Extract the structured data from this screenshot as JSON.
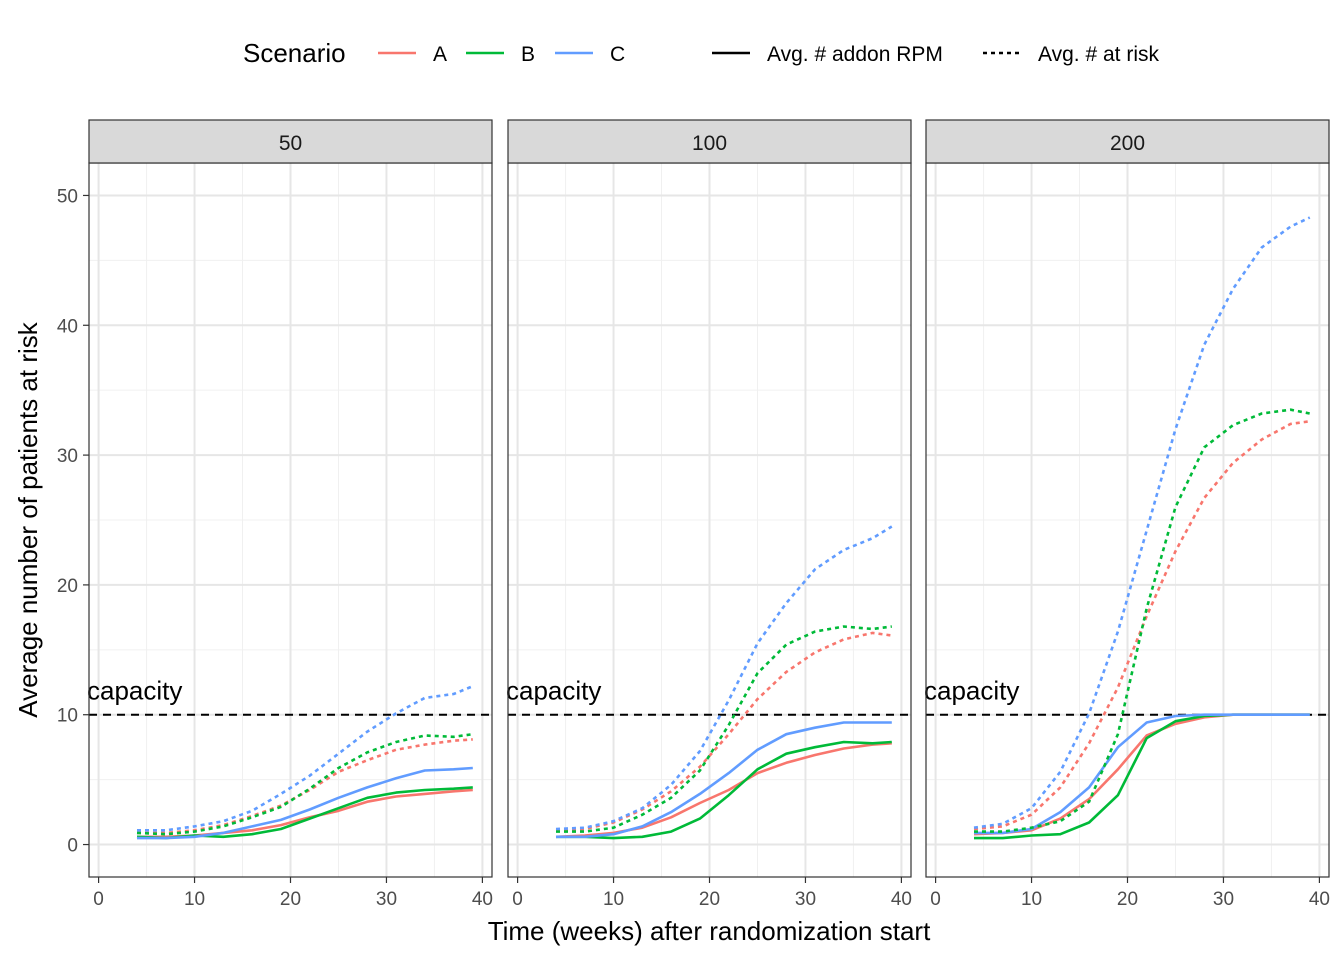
{
  "legend": {
    "title": "Scenario",
    "items": [
      {
        "label": "A",
        "color": "#F8766D"
      },
      {
        "label": "B",
        "color": "#00BA38"
      },
      {
        "label": "C",
        "color": "#619CFF"
      }
    ],
    "linetypes": [
      {
        "label": "Avg. # addon RPM",
        "dash": "solid"
      },
      {
        "label": "Avg. # at risk",
        "dash": "dotted"
      }
    ],
    "position": "top"
  },
  "chart_data": {
    "type": "line",
    "xlabel": "Time (weeks) after randomization start",
    "ylabel": "Average number of patients at risk",
    "xlim": [
      -1,
      41
    ],
    "ylim": [
      -2.5,
      52.5
    ],
    "xticks": [
      0,
      10,
      20,
      30,
      40
    ],
    "yticks": [
      0,
      10,
      20,
      30,
      40,
      50
    ],
    "grid": true,
    "hline": {
      "y": 10,
      "label": "capacity",
      "style": "dashed"
    },
    "x": [
      4,
      7,
      10,
      13,
      16,
      19,
      22,
      25,
      28,
      31,
      34,
      37,
      39
    ],
    "panels": [
      {
        "label": "50",
        "series": [
          {
            "scenario": "A",
            "measure": "Avg. # addon RPM",
            "values": [
              0.6,
              0.6,
              0.7,
              0.9,
              1.1,
              1.5,
              2.1,
              2.6,
              3.3,
              3.7,
              3.9,
              4.1,
              4.2
            ]
          },
          {
            "scenario": "B",
            "measure": "Avg. # addon RPM",
            "values": [
              0.6,
              0.5,
              0.7,
              0.6,
              0.8,
              1.2,
              2.0,
              2.8,
              3.6,
              4.0,
              4.2,
              4.3,
              4.4
            ]
          },
          {
            "scenario": "C",
            "measure": "Avg. # addon RPM",
            "values": [
              0.5,
              0.5,
              0.6,
              0.9,
              1.4,
              1.9,
              2.7,
              3.6,
              4.4,
              5.1,
              5.7,
              5.8,
              5.9
            ]
          },
          {
            "scenario": "A",
            "measure": "Avg. # at risk",
            "values": [
              0.9,
              0.9,
              1.1,
              1.5,
              2.2,
              3.0,
              4.2,
              5.6,
              6.5,
              7.3,
              7.7,
              8.0,
              8.1
            ]
          },
          {
            "scenario": "B",
            "measure": "Avg. # at risk",
            "values": [
              0.9,
              0.8,
              1.0,
              1.4,
              2.1,
              2.9,
              4.3,
              5.9,
              7.1,
              7.9,
              8.4,
              8.3,
              8.5
            ]
          },
          {
            "scenario": "C",
            "measure": "Avg. # at risk",
            "values": [
              1.1,
              1.1,
              1.4,
              1.8,
              2.6,
              3.9,
              5.3,
              7.0,
              8.7,
              10.1,
              11.3,
              11.6,
              12.2
            ]
          }
        ]
      },
      {
        "label": "100",
        "series": [
          {
            "scenario": "A",
            "measure": "Avg. # addon RPM",
            "values": [
              0.6,
              0.7,
              0.9,
              1.3,
              2.1,
              3.2,
              4.2,
              5.5,
              6.3,
              6.9,
              7.4,
              7.7,
              7.8
            ]
          },
          {
            "scenario": "B",
            "measure": "Avg. # addon RPM",
            "values": [
              0.6,
              0.6,
              0.5,
              0.6,
              1.0,
              2.0,
              3.8,
              5.8,
              7.0,
              7.5,
              7.9,
              7.8,
              7.9
            ]
          },
          {
            "scenario": "C",
            "measure": "Avg. # addon RPM",
            "values": [
              0.6,
              0.6,
              0.8,
              1.4,
              2.5,
              3.9,
              5.5,
              7.3,
              8.5,
              9.0,
              9.4,
              9.4,
              9.4
            ]
          },
          {
            "scenario": "A",
            "measure": "Avg. # at risk",
            "values": [
              1.1,
              1.2,
              1.7,
              2.7,
              4.1,
              6.0,
              8.5,
              11.2,
              13.3,
              14.8,
              15.8,
              16.3,
              16.1
            ]
          },
          {
            "scenario": "B",
            "measure": "Avg. # at risk",
            "values": [
              1.0,
              1.0,
              1.3,
              2.3,
              3.6,
              5.7,
              9.2,
              13.2,
              15.4,
              16.4,
              16.8,
              16.6,
              16.8
            ]
          },
          {
            "scenario": "C",
            "measure": "Avg. # at risk",
            "values": [
              1.2,
              1.3,
              1.8,
              2.8,
              4.6,
              7.2,
              11.1,
              15.5,
              18.6,
              21.2,
              22.7,
              23.6,
              24.5
            ]
          }
        ]
      },
      {
        "label": "200",
        "series": [
          {
            "scenario": "A",
            "measure": "Avg. # addon RPM",
            "values": [
              0.8,
              0.9,
              1.1,
              2.0,
              3.5,
              5.8,
              8.4,
              9.3,
              9.8,
              10.0,
              10.0,
              10.0,
              10.0
            ]
          },
          {
            "scenario": "B",
            "measure": "Avg. # addon RPM",
            "values": [
              0.5,
              0.5,
              0.7,
              0.8,
              1.7,
              3.8,
              8.2,
              9.5,
              9.9,
              10.0,
              10.0,
              10.0,
              10.0
            ]
          },
          {
            "scenario": "C",
            "measure": "Avg. # addon RPM",
            "values": [
              0.9,
              0.9,
              1.2,
              2.5,
              4.4,
              7.5,
              9.4,
              9.9,
              10.0,
              10.0,
              10.0,
              10.0,
              10.0
            ]
          },
          {
            "scenario": "A",
            "measure": "Avg. # at risk",
            "values": [
              1.2,
              1.4,
              2.3,
              4.4,
              7.8,
              12.1,
              17.6,
              22.6,
              26.7,
              29.4,
              31.2,
              32.4,
              32.6
            ]
          },
          {
            "scenario": "B",
            "measure": "Avg. # at risk",
            "values": [
              1.0,
              1.0,
              1.3,
              1.8,
              3.3,
              8.5,
              18.2,
              26.0,
              30.6,
              32.3,
              33.2,
              33.5,
              33.2
            ]
          },
          {
            "scenario": "C",
            "measure": "Avg. # at risk",
            "values": [
              1.3,
              1.6,
              2.8,
              5.6,
              10.1,
              16.4,
              24.2,
              32.0,
              38.5,
              42.8,
              46.0,
              47.6,
              48.3
            ]
          }
        ]
      }
    ]
  }
}
